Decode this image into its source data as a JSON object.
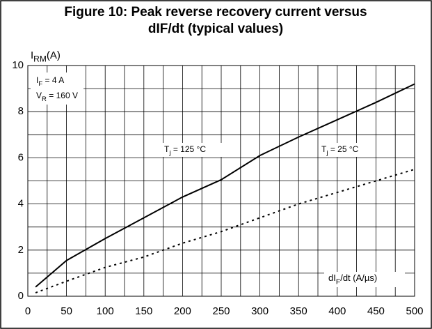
{
  "chart_data": {
    "type": "line",
    "title": [
      "Figure 10: Peak reverse recovery current versus",
      "dIF/dt (typical values)"
    ],
    "ylabel": {
      "main": "I",
      "sub": "RM",
      "rest": "(A)"
    },
    "xlabel": {
      "main": "dI",
      "sub": "F",
      "rest": "/dt (A/µs)"
    },
    "conditions": [
      {
        "main": "I",
        "sub": "F",
        "rest": " = 4 A"
      },
      {
        "main": "V",
        "sub": "R",
        "rest": " = 160 V"
      }
    ],
    "xlim": [
      0,
      500
    ],
    "ylim": [
      0,
      10
    ],
    "xticks": [
      0,
      50,
      100,
      150,
      200,
      250,
      300,
      350,
      400,
      450,
      500
    ],
    "yticks": [
      0,
      2,
      4,
      6,
      8,
      10
    ],
    "x_minor_grid": [
      25,
      75,
      125,
      175,
      225,
      275,
      325,
      375,
      425,
      475
    ],
    "y_minor_grid": [
      1,
      3,
      5,
      7,
      9
    ],
    "grid": true,
    "x": [
      10,
      50,
      100,
      150,
      200,
      250,
      300,
      350,
      400,
      450,
      500
    ],
    "series": [
      {
        "name": {
          "main": "T",
          "sub": "j",
          "rest": " = 125 °C"
        },
        "color": "#000000",
        "dash": false,
        "values": [
          0.4,
          1.55,
          2.5,
          3.4,
          4.3,
          5.05,
          6.1,
          6.9,
          7.65,
          8.4,
          9.2
        ]
      },
      {
        "name": {
          "main": "T",
          "sub": "j",
          "rest": " = 25 °C"
        },
        "color": "#000000",
        "dash": true,
        "values": [
          0.15,
          0.65,
          1.25,
          1.7,
          2.3,
          2.8,
          3.4,
          4.0,
          4.5,
          5.0,
          5.5
        ]
      }
    ]
  }
}
